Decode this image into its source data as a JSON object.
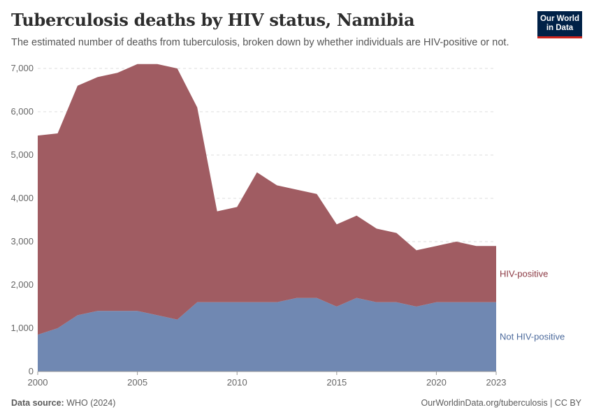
{
  "header": {
    "title": "Tuberculosis deaths by HIV status, Namibia",
    "subtitle": "The estimated number of deaths from tuberculosis, broken down by whether individuals are HIV-positive or not.",
    "logo_line1": "Our World",
    "logo_line2": "in Data"
  },
  "footer": {
    "source_label": "Data source:",
    "source_value": "WHO (2024)",
    "credit": "OurWorldinData.org/tuberculosis | CC BY"
  },
  "colors": {
    "hiv_positive": "#a05c62",
    "not_hiv_positive": "#7088b2",
    "hiv_positive_label": "#8c3a44",
    "not_hiv_positive_label": "#4c6a9c"
  },
  "chart_data": {
    "type": "area",
    "stacked": true,
    "x": [
      2000,
      2001,
      2002,
      2003,
      2004,
      2005,
      2006,
      2007,
      2008,
      2009,
      2010,
      2011,
      2012,
      2013,
      2014,
      2015,
      2016,
      2017,
      2018,
      2019,
      2020,
      2021,
      2022,
      2023
    ],
    "series": [
      {
        "name": "Not HIV-positive",
        "values": [
          850,
          1000,
          1300,
          1400,
          1400,
          1400,
          1300,
          1200,
          1600,
          1600,
          1600,
          1600,
          1600,
          1700,
          1700,
          1500,
          1700,
          1600,
          1600,
          1500,
          1600,
          1600,
          1600,
          1600
        ]
      },
      {
        "name": "HIV-positive",
        "values": [
          4600,
          4500,
          5300,
          5400,
          5500,
          5700,
          5800,
          5800,
          4500,
          2100,
          2200,
          3000,
          2700,
          2500,
          2400,
          1900,
          1900,
          1700,
          1600,
          1300,
          1300,
          1400,
          1300,
          1300
        ]
      }
    ],
    "xticks": [
      "2000",
      "2005",
      "2010",
      "2015",
      "2020",
      "2023"
    ],
    "yticks": [
      "0",
      "1,000",
      "2,000",
      "3,000",
      "4,000",
      "5,000",
      "6,000",
      "7,000"
    ],
    "xlim": [
      2000,
      2023
    ],
    "ylim": [
      0,
      7000
    ],
    "grid": "horizontal dashed",
    "legend": "inline-right"
  }
}
